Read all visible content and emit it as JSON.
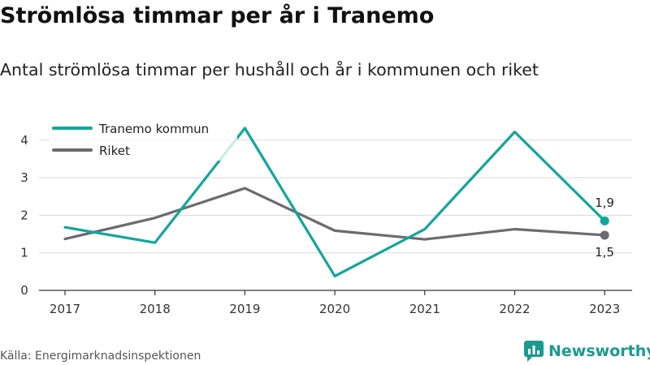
{
  "header": {
    "title": "Strömlösa timmar per år i Tranemo",
    "subtitle": "Antal strömlösa timmar per hushåll och år i kommunen och riket"
  },
  "footer": {
    "source": "Källa: Energimarknadsinspektionen",
    "brand": "Newsworthy"
  },
  "colors": {
    "tranemo": "#12a69a",
    "riket": "#6b6b70",
    "grid": "#d9d9d9",
    "axis": "#333333",
    "brand": "#1b9a8e"
  },
  "chart_data": {
    "type": "line",
    "x": [
      "2017",
      "2018",
      "2019",
      "2020",
      "2021",
      "2022",
      "2023"
    ],
    "series": [
      {
        "name": "Tranemo kommun",
        "values": [
          1.68,
          1.27,
          4.32,
          0.38,
          1.63,
          4.22,
          1.85
        ],
        "color": "#12a69a"
      },
      {
        "name": "Riket",
        "values": [
          1.37,
          1.93,
          2.72,
          1.59,
          1.36,
          1.63,
          1.47
        ],
        "color": "#6b6b70"
      }
    ],
    "ylim": [
      0,
      4.5
    ],
    "yticks": [
      "0",
      "1",
      "2",
      "3",
      "4"
    ],
    "grid": true,
    "legend": "top-left",
    "end_labels": [
      "1,9",
      "1,5"
    ],
    "xlabel": "",
    "ylabel": ""
  }
}
